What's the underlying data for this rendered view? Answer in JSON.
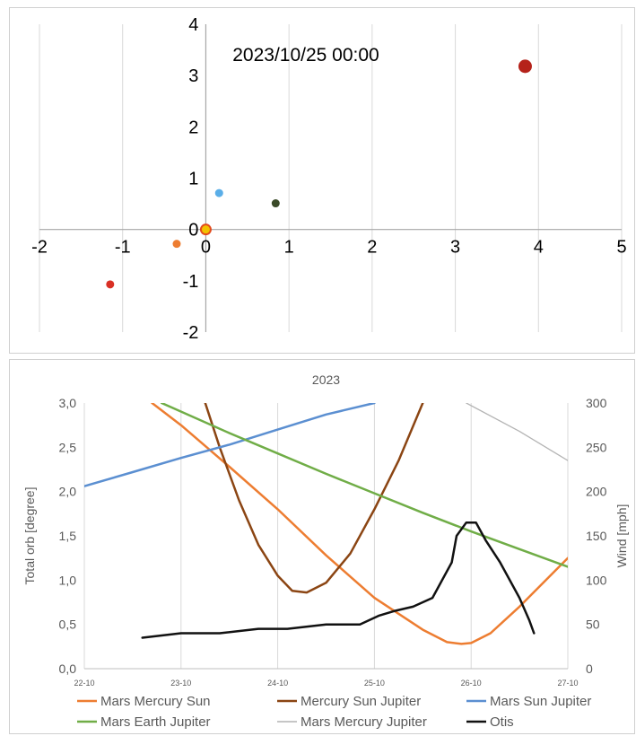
{
  "chart_data": [
    {
      "type": "scatter",
      "title": "2023/10/25 00:00",
      "xlim": [
        -2,
        5
      ],
      "ylim": [
        -2,
        4
      ],
      "xticks": [
        "-2",
        "-1",
        "0",
        "1",
        "2",
        "3",
        "4",
        "5"
      ],
      "yticks": [
        "4",
        "3",
        "2",
        "1",
        "0",
        "-1",
        "-2"
      ],
      "grid": "vertical",
      "points": [
        {
          "x": 0.0,
          "y": 0.0,
          "color": "#f2c200",
          "edge": "#e34a1c",
          "size": "medium"
        },
        {
          "x": -0.35,
          "y": -0.28,
          "color": "#ed7d31",
          "size": "small"
        },
        {
          "x": 0.16,
          "y": 0.71,
          "color": "#5aaee8",
          "size": "small"
        },
        {
          "x": 0.84,
          "y": 0.51,
          "color": "#3a4a28",
          "size": "small"
        },
        {
          "x": -1.15,
          "y": -1.07,
          "color": "#d93025",
          "size": "small"
        },
        {
          "x": 3.84,
          "y": 3.18,
          "color": "#b5221a",
          "size": "large"
        }
      ]
    },
    {
      "type": "line",
      "title": "2023",
      "ylabel": "Total orb [degree]",
      "y2label": "Wind [mph]",
      "xticks": [
        "22-10",
        "23-10",
        "24-10",
        "25-10",
        "26-10",
        "27-10"
      ],
      "xlim": [
        22,
        27
      ],
      "ylim": [
        0,
        3
      ],
      "yticks": [
        "3,0",
        "2,5",
        "2,0",
        "1,5",
        "1,0",
        "0,5",
        "0,0"
      ],
      "y2lim": [
        0,
        300
      ],
      "y2ticks": [
        "300",
        "250",
        "200",
        "150",
        "100",
        "50",
        "0"
      ],
      "grid": "vertical",
      "legend": "bottom",
      "series": [
        {
          "name": "Mars Mercury Sun",
          "color": "#ed7d31",
          "axis": "left",
          "points": [
            [
              22.7,
              3.0
            ],
            [
              23.0,
              2.75
            ],
            [
              23.5,
              2.28
            ],
            [
              24.0,
              1.8
            ],
            [
              24.5,
              1.28
            ],
            [
              25.0,
              0.8
            ],
            [
              25.5,
              0.44
            ],
            [
              25.75,
              0.3
            ],
            [
              25.9,
              0.28
            ],
            [
              26.0,
              0.29
            ],
            [
              26.2,
              0.4
            ],
            [
              26.5,
              0.7
            ],
            [
              27.0,
              1.25
            ]
          ]
        },
        {
          "name": "Mercury Sun Jupiter",
          "color": "#8b4513",
          "axis": "left",
          "points": [
            [
              23.25,
              3.0
            ],
            [
              23.4,
              2.5
            ],
            [
              23.6,
              1.9
            ],
            [
              23.8,
              1.4
            ],
            [
              24.0,
              1.05
            ],
            [
              24.15,
              0.88
            ],
            [
              24.3,
              0.86
            ],
            [
              24.5,
              0.97
            ],
            [
              24.75,
              1.3
            ],
            [
              25.0,
              1.8
            ],
            [
              25.25,
              2.35
            ],
            [
              25.5,
              3.0
            ]
          ]
        },
        {
          "name": "Mars Sun Jupiter",
          "color": "#5b8fd1",
          "axis": "left",
          "points": [
            [
              22.0,
              2.06
            ],
            [
              22.5,
              2.22
            ],
            [
              23.0,
              2.38
            ],
            [
              23.5,
              2.53
            ],
            [
              24.0,
              2.7
            ],
            [
              24.5,
              2.87
            ],
            [
              25.0,
              3.0
            ]
          ]
        },
        {
          "name": "Mars Earth Jupiter",
          "color": "#70ad47",
          "axis": "left",
          "points": [
            [
              22.8,
              3.0
            ],
            [
              23.5,
              2.66
            ],
            [
              24.0,
              2.43
            ],
            [
              24.5,
              2.2
            ],
            [
              25.0,
              1.98
            ],
            [
              25.5,
              1.76
            ],
            [
              26.0,
              1.55
            ],
            [
              26.5,
              1.35
            ],
            [
              27.0,
              1.15
            ]
          ]
        },
        {
          "name": "Mars Mercury Jupiter",
          "color": "#b4b4b4",
          "axis": "left",
          "points": [
            [
              25.95,
              3.0
            ],
            [
              26.5,
              2.68
            ],
            [
              27.0,
              2.35
            ]
          ]
        },
        {
          "name": "Otis",
          "color": "#111111",
          "axis": "right",
          "points": [
            [
              22.6,
              35
            ],
            [
              23.0,
              40
            ],
            [
              23.4,
              40
            ],
            [
              23.8,
              45
            ],
            [
              24.1,
              45
            ],
            [
              24.5,
              50
            ],
            [
              24.85,
              50
            ],
            [
              25.05,
              60
            ],
            [
              25.2,
              65
            ],
            [
              25.4,
              70
            ],
            [
              25.6,
              80
            ],
            [
              25.8,
              120
            ],
            [
              25.85,
              150
            ],
            [
              25.95,
              165
            ],
            [
              26.05,
              165
            ],
            [
              26.15,
              145
            ],
            [
              26.3,
              120
            ],
            [
              26.5,
              80
            ],
            [
              26.6,
              55
            ],
            [
              26.65,
              40
            ]
          ]
        }
      ]
    }
  ]
}
